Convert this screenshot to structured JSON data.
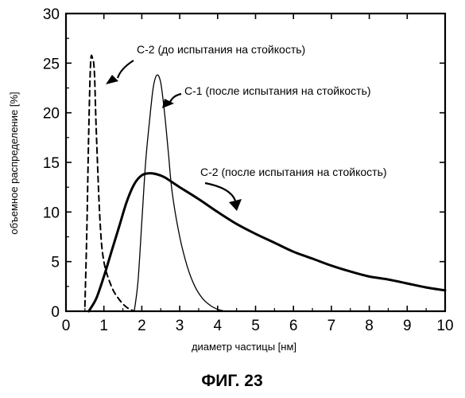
{
  "chart_data": {
    "type": "line",
    "xlabel": "диаметр частицы [нм]",
    "ylabel": "объемное распределение [%]",
    "xlim": [
      0,
      10
    ],
    "ylim": [
      0,
      30
    ],
    "x_ticks": [
      "0",
      "1",
      "2",
      "3",
      "4",
      "5",
      "6",
      "7",
      "8",
      "9",
      "10"
    ],
    "y_ticks": [
      "0",
      "5",
      "10",
      "15",
      "20",
      "25",
      "30"
    ],
    "grid": false,
    "legend": "none",
    "series": [
      {
        "name": "C-2 (до испытания на стойкость)",
        "style": "dashed",
        "x": [
          0.5,
          0.55,
          0.6,
          0.65,
          0.7,
          0.75,
          0.8,
          0.9,
          1.0,
          1.2,
          1.4,
          1.6,
          1.8
        ],
        "y": [
          0.5,
          8,
          18,
          25,
          25.5,
          24,
          18,
          9,
          5,
          2.5,
          1.2,
          0.4,
          0
        ]
      },
      {
        "name": "C-1 (после испытания на стойкость)",
        "style": "solid-thin",
        "x": [
          1.8,
          1.9,
          2.0,
          2.1,
          2.2,
          2.3,
          2.4,
          2.5,
          2.6,
          2.7,
          2.8,
          3.0,
          3.2,
          3.4,
          3.6,
          3.8,
          4.0,
          4.2
        ],
        "y": [
          0,
          3,
          9,
          15,
          19,
          22.5,
          23.8,
          23,
          20,
          16,
          12,
          7.5,
          4.5,
          2.5,
          1.3,
          0.6,
          0.2,
          0
        ]
      },
      {
        "name": "C-2 (после испытания на стойкость)",
        "style": "solid-thick",
        "x": [
          0.6,
          0.8,
          1.0,
          1.2,
          1.4,
          1.6,
          1.8,
          2.0,
          2.2,
          2.4,
          2.6,
          2.8,
          3.0,
          3.5,
          4.0,
          4.5,
          5.0,
          5.5,
          6.0,
          6.5,
          7.0,
          7.5,
          8.0,
          8.5,
          9.0,
          9.5,
          10.0
        ],
        "y": [
          0,
          1.3,
          3.5,
          6.0,
          8.5,
          11.0,
          12.8,
          13.7,
          13.9,
          13.8,
          13.5,
          13.0,
          12.5,
          11.3,
          10.0,
          8.8,
          7.8,
          6.9,
          6.0,
          5.3,
          4.6,
          4.0,
          3.5,
          3.2,
          2.8,
          2.4,
          2.1
        ]
      }
    ]
  },
  "figure_label": "ФИГ. 23"
}
